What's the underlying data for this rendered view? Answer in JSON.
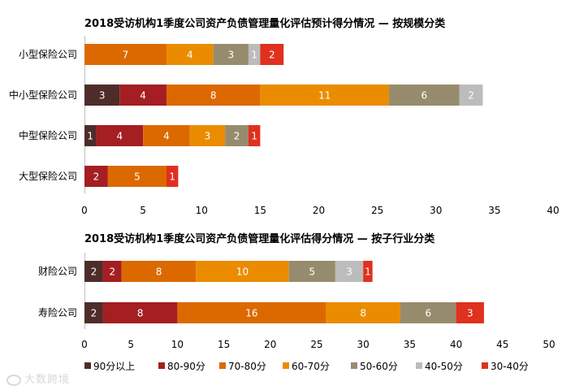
{
  "colors": {
    "90分以上": "#4e2c2a",
    "80-90分": "#a41e22",
    "70-80分": "#dc6900",
    "60-70分": "#eb8c00",
    "50-60分": "#968c6d",
    "40-50分": "#bcbcbc",
    "30-40分": "#e0301e"
  },
  "legend": {
    "items": [
      "90分以上",
      "80-90分",
      "70-80分",
      "60-70分",
      "50-60分",
      "40-50分",
      "30-40分"
    ]
  },
  "watermark": "大数跨境",
  "chart_data": [
    {
      "type": "bar",
      "orientation": "horizontal",
      "stacked": true,
      "title": "2018受访机构1季度公司资产负债管理量化评估预计得分情况 — 按规模分类",
      "categories": [
        "小型保险公司",
        "中小型保险公司",
        "中型保险公司",
        "大型保险公司"
      ],
      "series": [
        {
          "name": "90分以上",
          "values": [
            0,
            3,
            1,
            0
          ]
        },
        {
          "name": "80-90分",
          "values": [
            0,
            4,
            4,
            2
          ]
        },
        {
          "name": "70-80分",
          "values": [
            7,
            8,
            4,
            5
          ]
        },
        {
          "name": "60-70分",
          "values": [
            4,
            11,
            3,
            0
          ]
        },
        {
          "name": "50-60分",
          "values": [
            3,
            6,
            2,
            0
          ]
        },
        {
          "name": "40-50分",
          "values": [
            1,
            2,
            0,
            0
          ]
        },
        {
          "name": "30-40分",
          "values": [
            2,
            0,
            1,
            1
          ]
        }
      ],
      "xlim": [
        0,
        40
      ],
      "xticks": [
        "0",
        "5",
        "10",
        "15",
        "20",
        "25",
        "30",
        "35",
        "40"
      ],
      "grid": false
    },
    {
      "type": "bar",
      "orientation": "horizontal",
      "stacked": true,
      "title": "2018受访机构1季度公司资产负债管理量化评估得分情况 — 按子行业分类",
      "categories": [
        "财险公司",
        "寿险公司"
      ],
      "series": [
        {
          "name": "90分以上",
          "values": [
            2,
            2
          ]
        },
        {
          "name": "80-90分",
          "values": [
            2,
            8
          ]
        },
        {
          "name": "70-80分",
          "values": [
            8,
            16
          ]
        },
        {
          "name": "60-70分",
          "values": [
            10,
            8
          ]
        },
        {
          "name": "50-60分",
          "values": [
            5,
            6
          ]
        },
        {
          "name": "40-50分",
          "values": [
            3,
            0
          ]
        },
        {
          "name": "30-40分",
          "values": [
            1,
            3
          ]
        }
      ],
      "xlim": [
        0,
        50
      ],
      "xticks": [
        "0",
        "5",
        "10",
        "15",
        "20",
        "25",
        "30",
        "35",
        "40",
        "45",
        "50"
      ],
      "grid": false,
      "legend_position": "bottom"
    }
  ]
}
